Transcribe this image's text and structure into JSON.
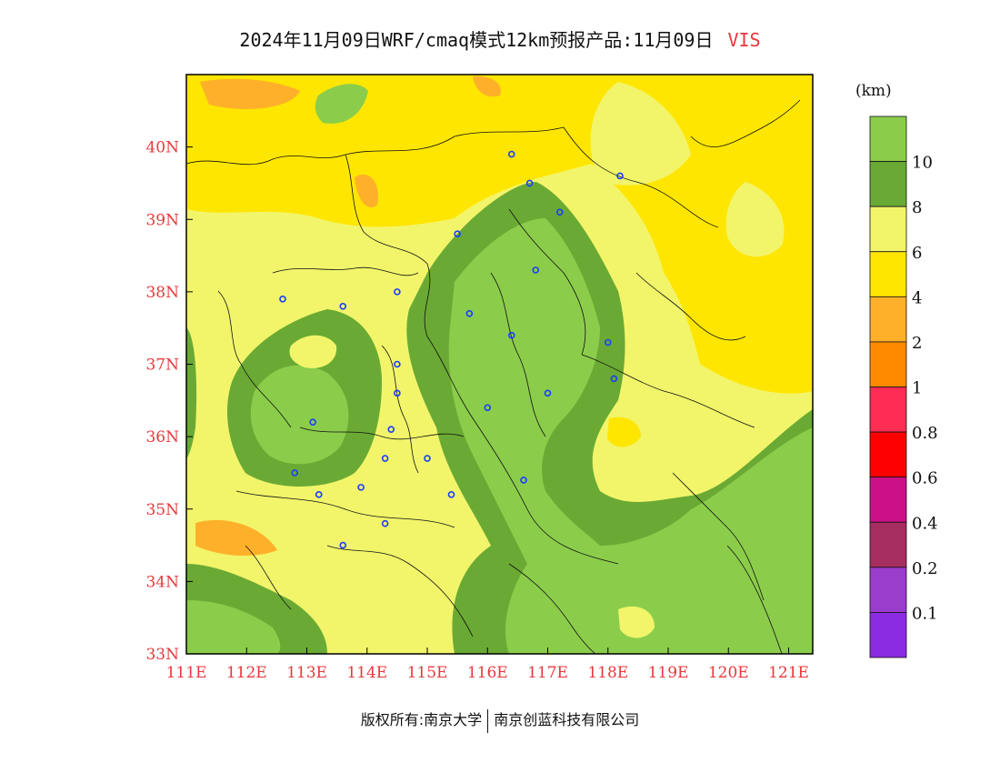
{
  "title": {
    "text": "2024年11月09日WRF/cmaq模式12km预报产品:11月09日",
    "variable": "VIS"
  },
  "colorbar": {
    "unit_label": "(km)",
    "bins": [
      {
        "color": "#8bcd4b",
        "label": ""
      },
      {
        "color": "#6aaa34",
        "label": "10"
      },
      {
        "color": "#f2f56a",
        "label": "8"
      },
      {
        "color": "#ffe600",
        "label": "6"
      },
      {
        "color": "#ffb02a",
        "label": "4"
      },
      {
        "color": "#ff8a00",
        "label": "2"
      },
      {
        "color": "#ff2d55",
        "label": "1"
      },
      {
        "color": "#ff0000",
        "label": "0.8"
      },
      {
        "color": "#cc1188",
        "label": "0.6"
      },
      {
        "color": "#a62e60",
        "label": "0.4"
      },
      {
        "color": "#9a3ccc",
        "label": "0.2"
      },
      {
        "color": "#8b2be2",
        "label": "0.1"
      }
    ]
  },
  "map": {
    "lon_range": [
      111,
      121.4
    ],
    "lat_range": [
      33,
      41
    ],
    "lon_ticks": [
      "111E",
      "112E",
      "113E",
      "114E",
      "115E",
      "116E",
      "117E",
      "118E",
      "119E",
      "120E",
      "121E"
    ],
    "lat_ticks": [
      "33N",
      "34N",
      "35N",
      "36N",
      "37N",
      "38N",
      "39N",
      "40N"
    ],
    "stations": [
      {
        "lon": 116.4,
        "lat": 39.9
      },
      {
        "lon": 116.7,
        "lat": 39.5
      },
      {
        "lon": 117.2,
        "lat": 39.1
      },
      {
        "lon": 118.2,
        "lat": 39.6
      },
      {
        "lon": 115.5,
        "lat": 38.8
      },
      {
        "lon": 116.8,
        "lat": 38.3
      },
      {
        "lon": 112.6,
        "lat": 37.9
      },
      {
        "lon": 113.6,
        "lat": 37.8
      },
      {
        "lon": 114.5,
        "lat": 38.0
      },
      {
        "lon": 115.7,
        "lat": 37.7
      },
      {
        "lon": 116.4,
        "lat": 37.4
      },
      {
        "lon": 118.0,
        "lat": 37.3
      },
      {
        "lon": 114.5,
        "lat": 37.0
      },
      {
        "lon": 118.1,
        "lat": 36.8
      },
      {
        "lon": 114.5,
        "lat": 36.6
      },
      {
        "lon": 117.0,
        "lat": 36.6
      },
      {
        "lon": 116.0,
        "lat": 36.4
      },
      {
        "lon": 113.1,
        "lat": 36.2
      },
      {
        "lon": 114.4,
        "lat": 36.1
      },
      {
        "lon": 114.3,
        "lat": 35.7
      },
      {
        "lon": 115.0,
        "lat": 35.7
      },
      {
        "lon": 116.6,
        "lat": 35.4
      },
      {
        "lon": 112.8,
        "lat": 35.5
      },
      {
        "lon": 113.2,
        "lat": 35.2
      },
      {
        "lon": 113.9,
        "lat": 35.3
      },
      {
        "lon": 115.4,
        "lat": 35.2
      },
      {
        "lon": 114.3,
        "lat": 34.8
      },
      {
        "lon": 113.6,
        "lat": 34.5
      }
    ]
  },
  "copyright": {
    "left": "版权所有:南京大学",
    "right": "南京创蓝科技有限公司"
  }
}
